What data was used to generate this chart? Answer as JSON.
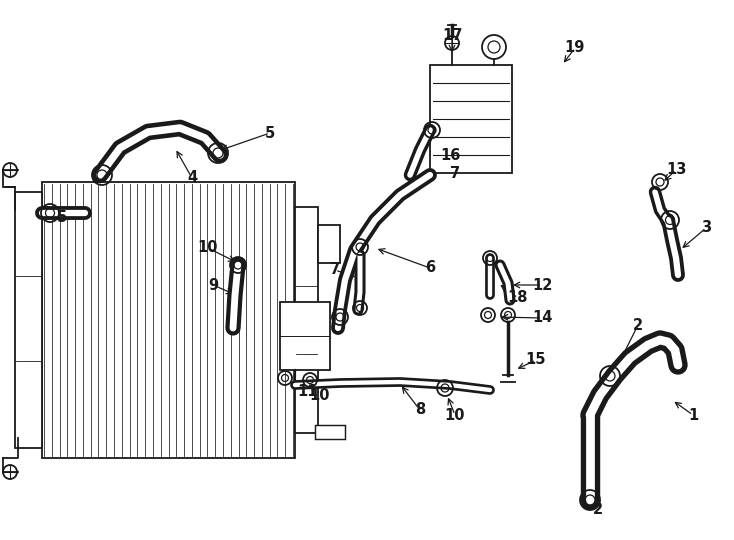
{
  "background_color": "#ffffff",
  "line_color": "#1a1a1a",
  "fig_w": 7.34,
  "fig_h": 5.4,
  "dpi": 100
}
